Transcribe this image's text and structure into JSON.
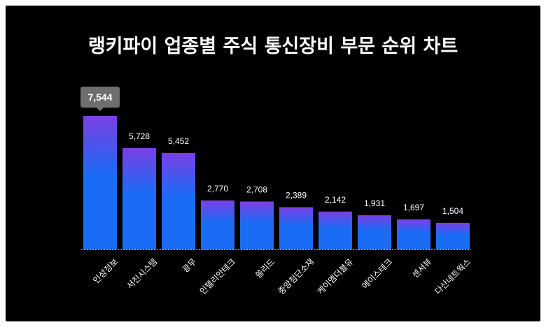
{
  "chart_data": {
    "type": "bar",
    "title": "랭키파이 업종별 주식 통신장비 부문 순위 차트",
    "categories": [
      "인성정보",
      "서진시스템",
      "광무",
      "인텔리안테크",
      "쏠리드",
      "중앙첨단소재",
      "케이엠더블유",
      "에이스테크",
      "센서뷰",
      "다산네트웍스"
    ],
    "values": [
      7544,
      5728,
      5452,
      2770,
      2708,
      2389,
      2142,
      1931,
      1697,
      1504
    ],
    "value_labels": [
      "7,544",
      "5,728",
      "5,452",
      "2,770",
      "2,708",
      "2,389",
      "2,142",
      "1,931",
      "1,697",
      "1,504"
    ],
    "highlight_index": 0,
    "ylim": [
      0,
      7544
    ],
    "grid": false,
    "colors": {
      "background": "#000000",
      "bar_top": "#7b3fe4",
      "bar_bottom": "#1a6cf5",
      "tooltip": "#6e6e6e",
      "text": "#ffffff",
      "baseline": "#cfcfcf"
    }
  }
}
